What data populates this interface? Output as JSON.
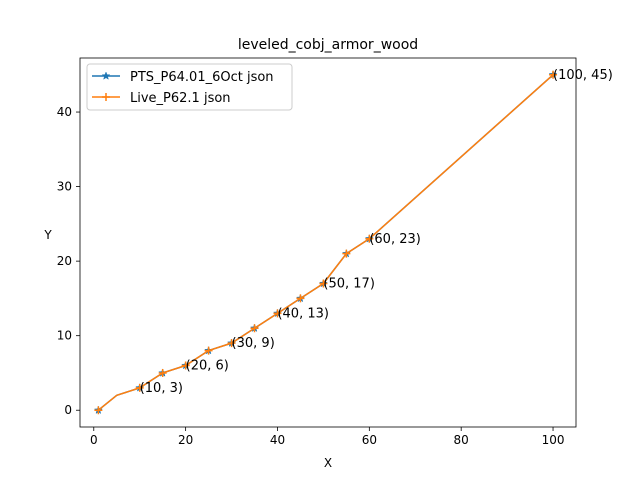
{
  "chart_data": {
    "type": "line",
    "title": "leveled_cobj_armor_wood",
    "xlabel": "X",
    "ylabel": "Y",
    "xlim": [
      -3,
      105
    ],
    "ylim": [
      -2.25,
      47.25
    ],
    "xticks": [
      0,
      20,
      40,
      60,
      80,
      100
    ],
    "yticks": [
      0,
      10,
      20,
      30,
      40
    ],
    "grid": false,
    "legend_position": "top-left",
    "series": [
      {
        "name": "PTS_P64.01_6Oct json",
        "color": "#1f77b4",
        "marker": "star",
        "x": [
          1,
          5,
          10,
          15,
          20,
          25,
          30,
          35,
          40,
          45,
          50,
          55,
          60,
          100
        ],
        "y": [
          0,
          2,
          3,
          5,
          6,
          8,
          9,
          11,
          13,
          15,
          17,
          21,
          23,
          45
        ]
      },
      {
        "name": "Live_P62.1 json",
        "color": "#ff7f0e",
        "marker": "plus",
        "x": [
          1,
          5,
          10,
          15,
          20,
          25,
          30,
          35,
          40,
          45,
          50,
          55,
          60,
          100
        ],
        "y": [
          0,
          2,
          3,
          5,
          6,
          8,
          9,
          11,
          13,
          15,
          17,
          21,
          23,
          45
        ]
      }
    ],
    "annotations": [
      {
        "text": "(10, 3)",
        "x": 10,
        "y": 3
      },
      {
        "text": "(20, 6)",
        "x": 20,
        "y": 6
      },
      {
        "text": "(30, 9)",
        "x": 30,
        "y": 9
      },
      {
        "text": "(40, 13)",
        "x": 40,
        "y": 13
      },
      {
        "text": "(50, 17)",
        "x": 50,
        "y": 17
      },
      {
        "text": "(60, 23)",
        "x": 60,
        "y": 23
      },
      {
        "text": "(100, 45)",
        "x": 100,
        "y": 45
      }
    ]
  }
}
